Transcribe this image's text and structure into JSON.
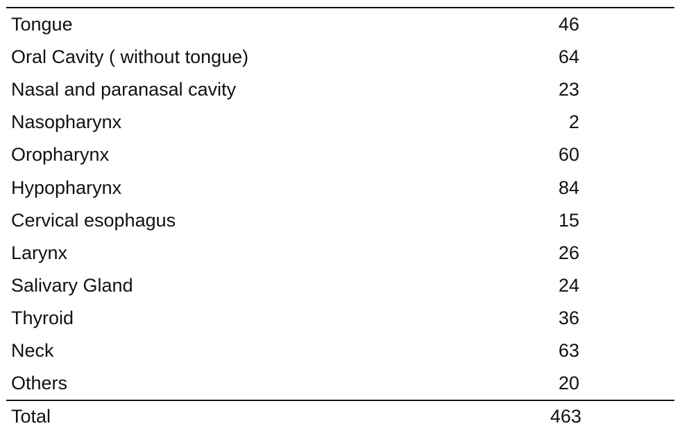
{
  "table": {
    "rows": [
      [
        "Tongue",
        46
      ],
      [
        "Oral Cavity ( without tongue)",
        64
      ],
      [
        "Nasal and paranasal cavity",
        23
      ],
      [
        "Nasopharynx",
        2
      ],
      [
        "Oropharynx",
        60
      ],
      [
        "Hypopharynx",
        84
      ],
      [
        "Cervical esophagus",
        15
      ],
      [
        "Larynx",
        26
      ],
      [
        "Salivary Gland",
        24
      ],
      [
        "Thyroid",
        36
      ],
      [
        "Neck",
        63
      ],
      [
        "Others",
        20
      ]
    ],
    "total": [
      "Total",
      463
    ]
  }
}
